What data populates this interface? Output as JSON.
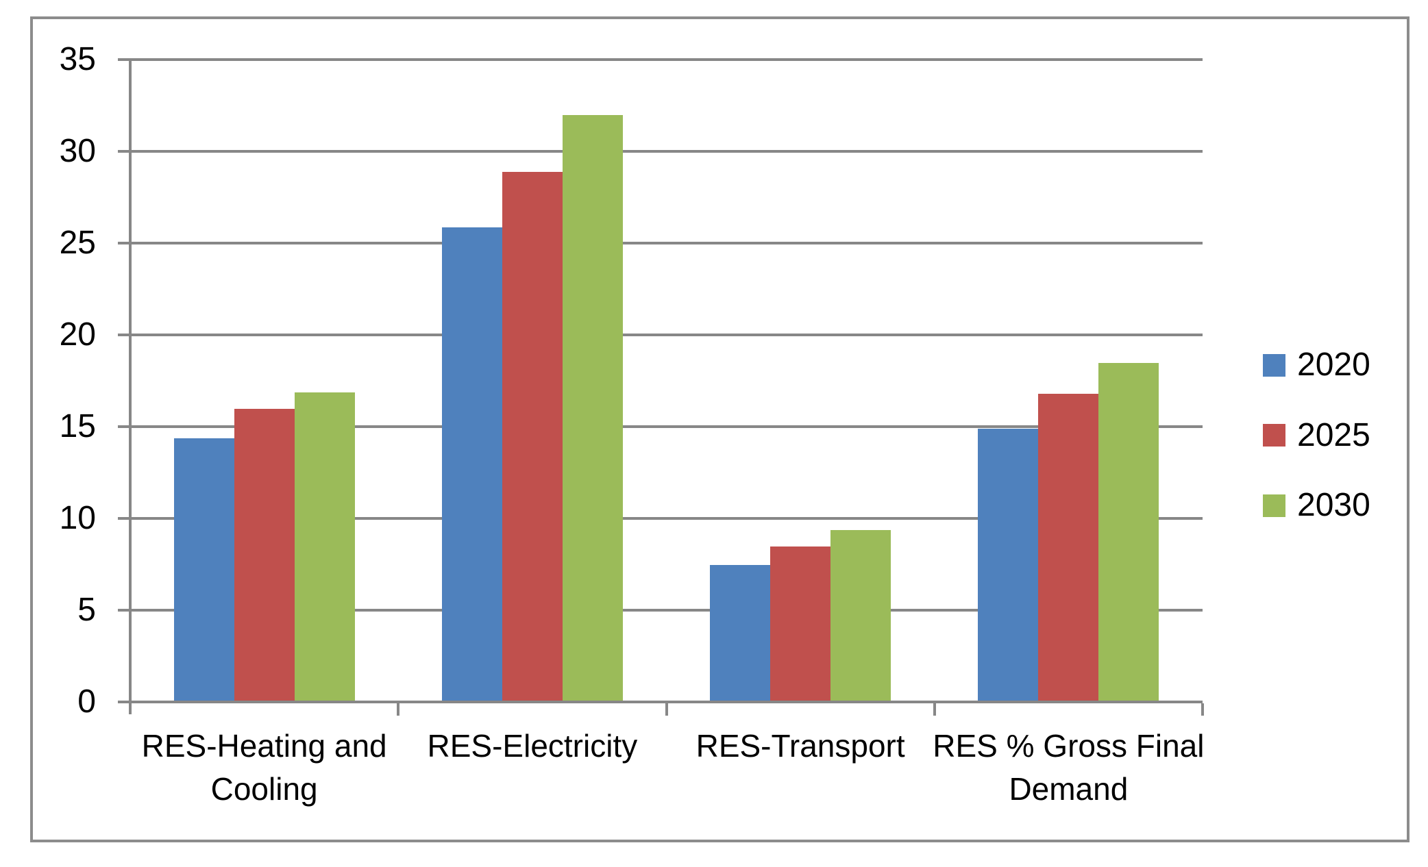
{
  "chart_data": {
    "type": "bar",
    "title": "",
    "xlabel": "",
    "ylabel": "",
    "categories": [
      "RES-Heating and Cooling",
      "RES-Electricity",
      "RES-Transport",
      "RES % Gross Final Demand"
    ],
    "series": [
      {
        "name": "2020",
        "color": "#4F81BD",
        "values": [
          14.3,
          25.8,
          7.4,
          14.8
        ]
      },
      {
        "name": "2025",
        "color": "#C0504D",
        "values": [
          15.9,
          28.8,
          8.4,
          16.7
        ]
      },
      {
        "name": "2030",
        "color": "#9BBB59",
        "values": [
          16.8,
          31.9,
          9.3,
          18.4
        ]
      }
    ],
    "ylim": [
      0,
      35
    ],
    "ytick_step": 5,
    "ytick_labels": [
      "0",
      "5",
      "10",
      "15",
      "20",
      "25",
      "30",
      "35"
    ],
    "grid": true,
    "legend_position": "right"
  },
  "colors": {
    "gridline": "#878787",
    "axis": "#878787",
    "frame_border": "#8C8C8C",
    "background": "#FFFFFF",
    "text": "#000000"
  }
}
